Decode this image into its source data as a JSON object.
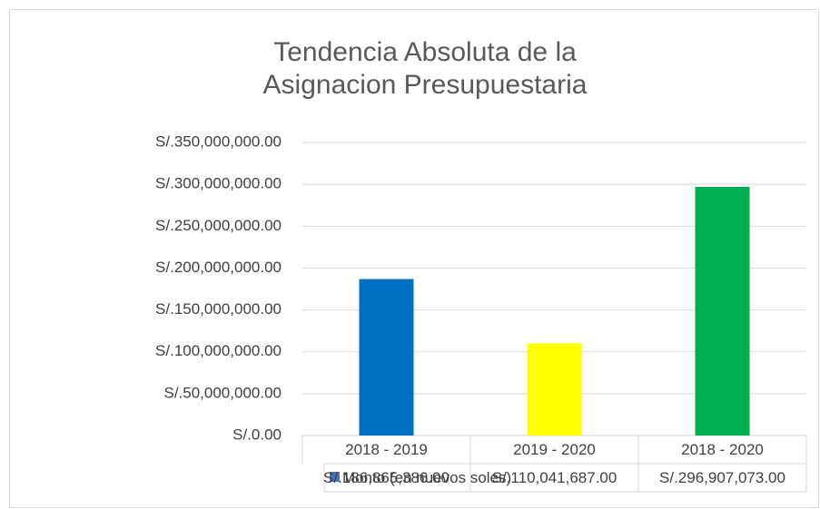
{
  "chart_data": {
    "type": "bar",
    "title": "Tendencia Absoluta de la Asignacion Presupuestaria",
    "categories": [
      "2018 - 2019",
      "2019 - 2020",
      "2018 - 2020"
    ],
    "series": [
      {
        "name": "Monto (en nuevos soles)",
        "color": "#4472c4",
        "colors": [
          "#0070c0",
          "#ffff00",
          "#00b050"
        ],
        "values": [
          186865386,
          110041687,
          296907073
        ],
        "value_labels": [
          "S/.186,865,386.00",
          "S/.110,041,687.00",
          "S/.296,907,073.00"
        ]
      }
    ],
    "ylim": [
      0,
      350000000
    ],
    "yticks": [
      {
        "value": 0,
        "label": "S/.0.00"
      },
      {
        "value": 50000000,
        "label": "S/.50,000,000.00"
      },
      {
        "value": 100000000,
        "label": "S/.100,000,000.00"
      },
      {
        "value": 150000000,
        "label": "S/.150,000,000.00"
      },
      {
        "value": 200000000,
        "label": "S/.200,000,000.00"
      },
      {
        "value": 250000000,
        "label": "S/.250,000,000.00"
      },
      {
        "value": 300000000,
        "label": "S/.300,000,000.00"
      },
      {
        "value": 350000000,
        "label": "S/.350,000,000.00"
      }
    ],
    "grid": true
  }
}
